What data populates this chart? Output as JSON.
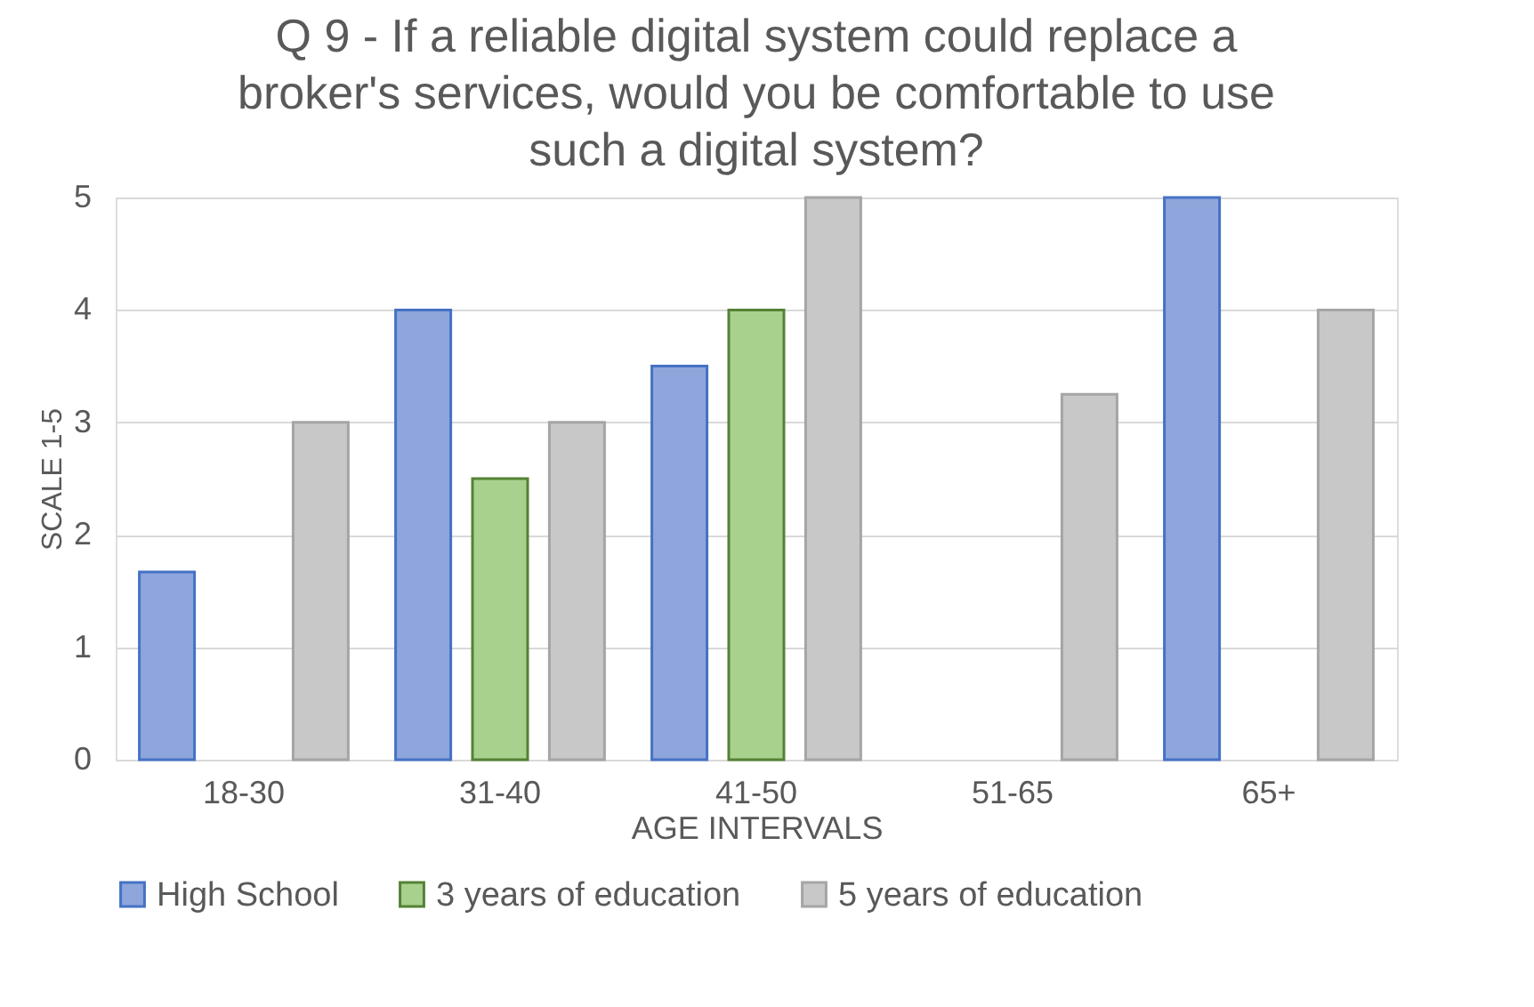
{
  "chart_data": {
    "type": "bar",
    "title": "Q 9 - If a reliable digital system could replace a broker's services, would you be comfortable to use such a digital system?",
    "xlabel": "AGE INTERVALS",
    "ylabel": "SCALE 1-5",
    "categories": [
      "18-30",
      "31-40",
      "41-50",
      "51-65",
      "65+"
    ],
    "series": [
      {
        "name": "High School",
        "color": "#8fa6dc",
        "values": [
          1.67,
          4,
          3.5,
          null,
          5
        ]
      },
      {
        "name": "3 years of education",
        "color": "#a9d18e",
        "values": [
          null,
          2.5,
          4,
          null,
          null
        ]
      },
      {
        "name": "5 years of education",
        "color": "#c8c8c8",
        "values": [
          3,
          3,
          5,
          3.25,
          4
        ]
      }
    ],
    "ylim": [
      0,
      5
    ],
    "yticks": [
      0,
      1,
      2,
      3,
      4,
      5
    ],
    "grid": "y",
    "legend": "bottom"
  }
}
